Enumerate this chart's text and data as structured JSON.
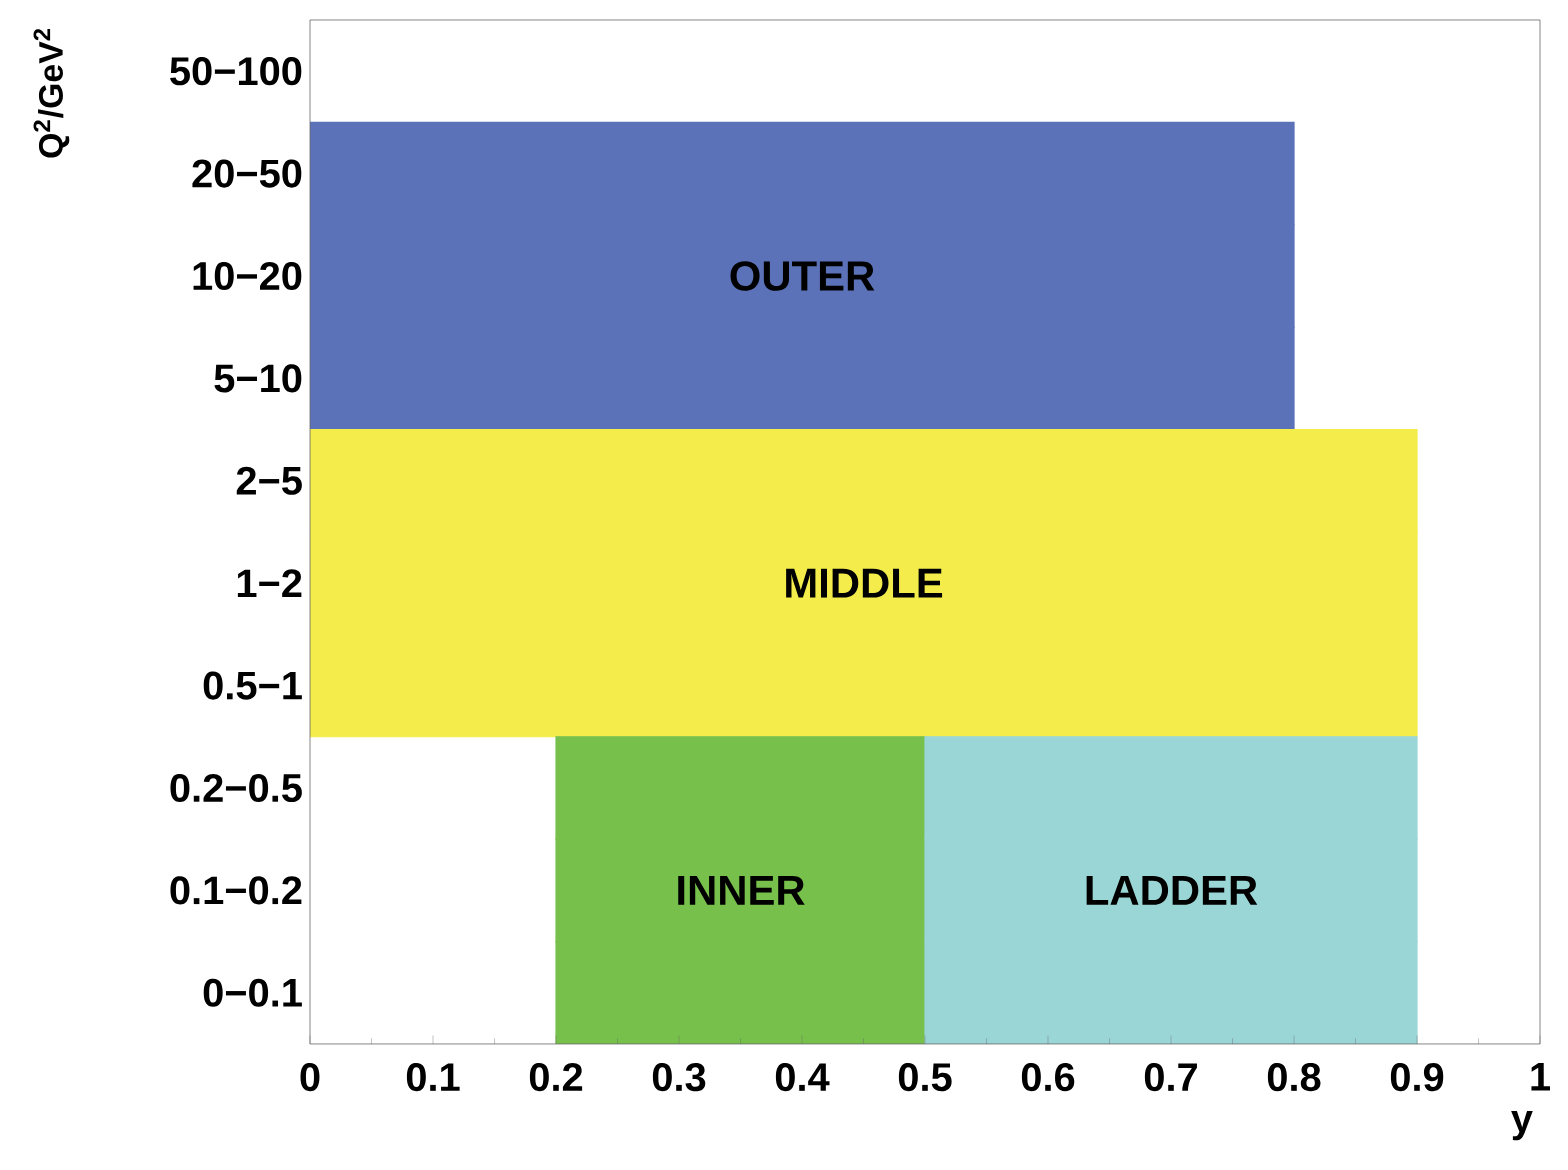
{
  "chart_data": {
    "type": "bar",
    "orientation": "horizontal",
    "xlabel": "y",
    "ylabel": "Q$^{2}$/GeV$^{2}$",
    "categories": [
      "50−100",
      "20−50",
      "10−20",
      "5−10",
      "2−5",
      "1−2",
      "0.5−1",
      "0.2−0.5",
      "0.1−0.2",
      "0−0.1"
    ],
    "xlim": [
      0,
      1
    ],
    "xticks": [
      0,
      0.1,
      0.2,
      0.3,
      0.4,
      0.5,
      0.6,
      0.7,
      0.8,
      0.9,
      1
    ],
    "series": [
      {
        "name": "OUTER",
        "color": "#5b72b8",
        "values": [
          null,
          0.8,
          0.8,
          0.8,
          null,
          null,
          null,
          null,
          null,
          null
        ],
        "base": [
          null,
          0,
          0,
          0,
          null,
          null,
          null,
          null,
          null,
          null
        ]
      },
      {
        "name": "MIDDLE",
        "color": "#f3ec4a",
        "values": [
          null,
          null,
          null,
          null,
          0.9,
          0.9,
          0.9,
          null,
          null,
          null
        ],
        "base": [
          null,
          null,
          null,
          null,
          0,
          0,
          0,
          null,
          null,
          null
        ]
      },
      {
        "name": "INNER",
        "color": "#77c04b",
        "values": [
          null,
          null,
          null,
          null,
          null,
          null,
          null,
          0.3,
          0.3,
          0.3
        ],
        "base": [
          null,
          null,
          null,
          null,
          null,
          null,
          null,
          0.2,
          0.2,
          0.2
        ]
      },
      {
        "name": "LADDER",
        "color": "#9bd6d7",
        "values": [
          null,
          null,
          null,
          null,
          null,
          null,
          null,
          0.4,
          0.4,
          0.4
        ],
        "base": [
          null,
          null,
          null,
          null,
          null,
          null,
          null,
          0.5,
          0.5,
          0.5
        ]
      }
    ]
  }
}
